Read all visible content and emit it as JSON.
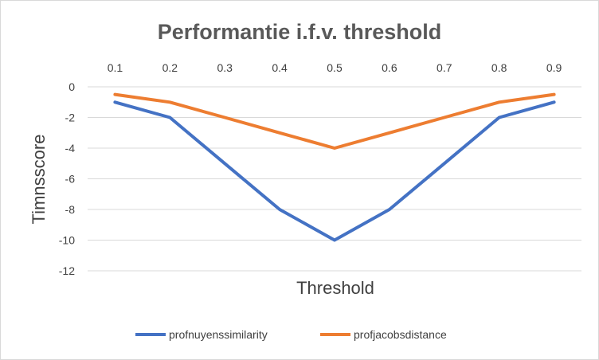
{
  "chart_data": {
    "type": "line",
    "title": "Performantie i.f.v. threshold",
    "xlabel": "Threshold",
    "ylabel": "Timnsscore",
    "x": [
      "0.1",
      "0.2",
      "0.3",
      "0.4",
      "0.5",
      "0.6",
      "0.7",
      "0.8",
      "0.9"
    ],
    "x_axis_position": "top",
    "y_ticks": [
      "0",
      "-2",
      "-4",
      "-6",
      "-8",
      "-10",
      "-12"
    ],
    "ylim": [
      -12,
      0
    ],
    "grid": "horizontal",
    "legend_position": "bottom",
    "series": [
      {
        "name": "profnuyenssimilarity",
        "color": "#4472C4",
        "values": [
          -1,
          -2,
          -5,
          -8,
          -10,
          -8,
          -5,
          -2,
          -1
        ]
      },
      {
        "name": "profjacobsdistance",
        "color": "#ED7D31",
        "values": [
          -0.5,
          -1,
          -2,
          -3,
          -4,
          -3,
          -2,
          -1,
          -0.5
        ]
      }
    ]
  }
}
